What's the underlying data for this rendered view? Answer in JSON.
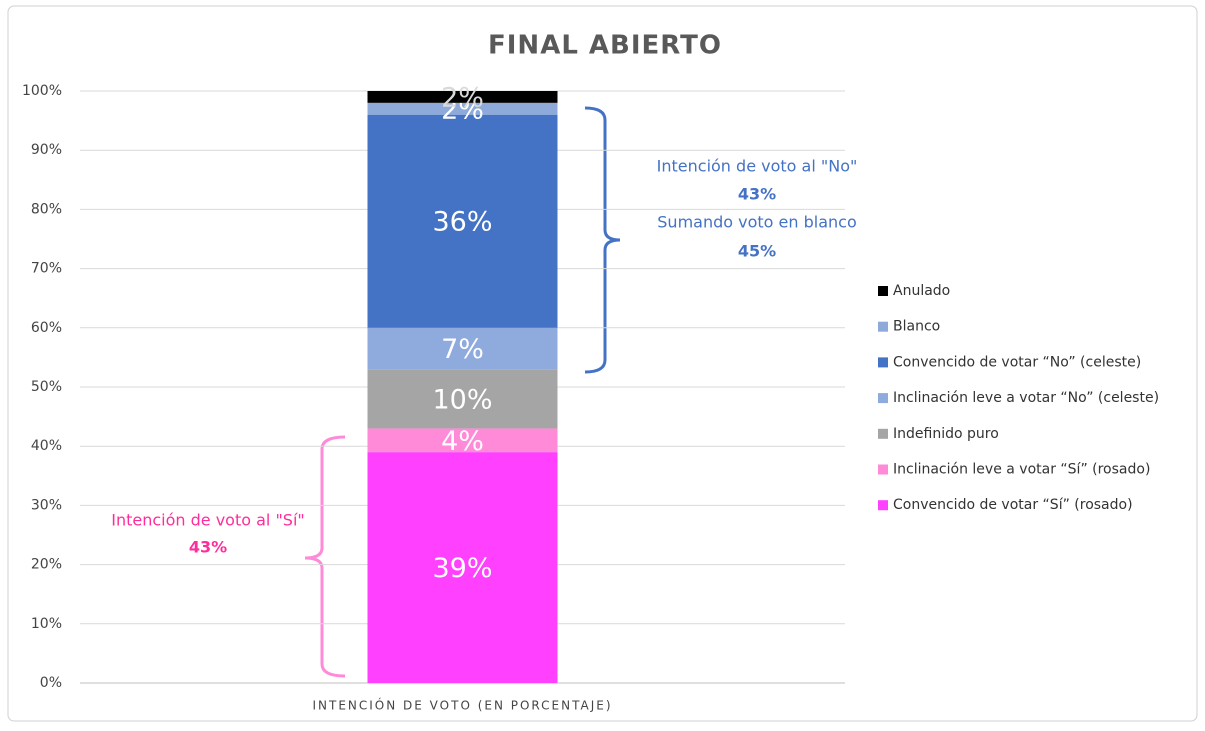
{
  "chart_data": {
    "type": "stacked_bar",
    "title": "FINAL ABIERTO",
    "categories": [
      "INTENCIÓN DE VOTO (EN PORCENTAJE)"
    ],
    "series": [
      {
        "name": "Convencido de votar “Sí” (rosado)",
        "color": "#ff40ff",
        "values": [
          39
        ],
        "value_labels": [
          "39%"
        ]
      },
      {
        "name": "Inclinación leve a votar “Sí” (rosado)",
        "color": "#ff8ad8",
        "values": [
          4
        ],
        "value_labels": [
          "4%"
        ]
      },
      {
        "name": "Indefinido puro",
        "color": "#a5a5a5",
        "values": [
          10
        ],
        "value_labels": [
          "10%"
        ]
      },
      {
        "name": "Inclinación leve a votar “No” (celeste)",
        "color": "#8faadc",
        "values": [
          7
        ],
        "value_labels": [
          "7%"
        ]
      },
      {
        "name": "Convencido de votar “No” (celeste)",
        "color": "#4472c4",
        "values": [
          36
        ],
        "value_labels": [
          "36%"
        ]
      },
      {
        "name": "Blanco",
        "color": "#8eaadb",
        "values": [
          2
        ],
        "value_labels": [
          "2%"
        ]
      },
      {
        "name": "Anulado",
        "color": "#000000",
        "values": [
          2
        ],
        "value_labels": [
          "2%"
        ]
      }
    ],
    "ylim": [
      0,
      100
    ],
    "yticks": [
      {
        "value": 0,
        "label": "0%"
      },
      {
        "value": 10,
        "label": "10%"
      },
      {
        "value": 20,
        "label": "20%"
      },
      {
        "value": 30,
        "label": "30%"
      },
      {
        "value": 40,
        "label": "40%"
      },
      {
        "value": 50,
        "label": "50%"
      },
      {
        "value": 60,
        "label": "60%"
      },
      {
        "value": 70,
        "label": "70%"
      },
      {
        "value": 80,
        "label": "80%"
      },
      {
        "value": 90,
        "label": "90%"
      },
      {
        "value": 100,
        "label": "100%"
      }
    ],
    "grid": true,
    "legend": "right",
    "annotations": {
      "no_label": "Intención de voto al \"No\"",
      "no_value": "43%",
      "blank_label": "Sumando voto en blanco",
      "blank_value": "45%",
      "si_label": "Intención de voto al \"Sí\"",
      "si_value": "43%"
    }
  }
}
